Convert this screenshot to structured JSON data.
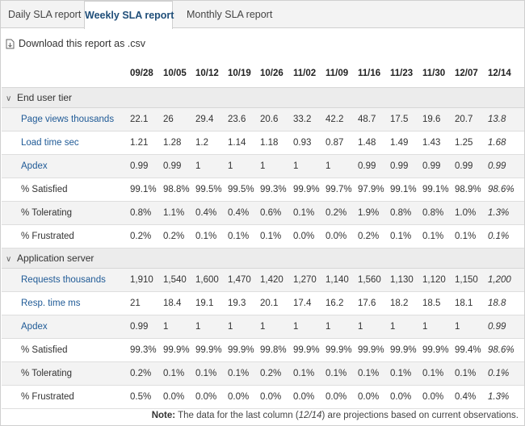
{
  "tabs": [
    {
      "label": "Daily SLA report"
    },
    {
      "label": "Weekly SLA report"
    },
    {
      "label": "Monthly SLA report"
    }
  ],
  "download": {
    "label": "Download this report as .csv"
  },
  "columns": [
    "09/28",
    "10/05",
    "10/12",
    "10/19",
    "10/26",
    "11/02",
    "11/09",
    "11/16",
    "11/23",
    "11/30",
    "12/07",
    "12/14"
  ],
  "sections": [
    {
      "title": "End user tier",
      "rows": [
        {
          "label": "Page views thousands",
          "link": true,
          "values": [
            "22.1",
            "26",
            "29.4",
            "23.6",
            "20.6",
            "33.2",
            "42.2",
            "48.7",
            "17.5",
            "19.6",
            "20.7",
            "13.8"
          ]
        },
        {
          "label": "Load time sec",
          "link": true,
          "values": [
            "1.21",
            "1.28",
            "1.2",
            "1.14",
            "1.18",
            "0.93",
            "0.87",
            "1.48",
            "1.49",
            "1.43",
            "1.25",
            "1.68"
          ]
        },
        {
          "label": "Apdex",
          "link": true,
          "values": [
            "0.99",
            "0.99",
            "1",
            "1",
            "1",
            "1",
            "1",
            "0.99",
            "0.99",
            "0.99",
            "0.99",
            "0.99"
          ]
        },
        {
          "label": "% Satisfied",
          "link": false,
          "values": [
            "99.1%",
            "98.8%",
            "99.5%",
            "99.5%",
            "99.3%",
            "99.9%",
            "99.7%",
            "97.9%",
            "99.1%",
            "99.1%",
            "98.9%",
            "98.6%"
          ]
        },
        {
          "label": "% Tolerating",
          "link": false,
          "values": [
            "0.8%",
            "1.1%",
            "0.4%",
            "0.4%",
            "0.6%",
            "0.1%",
            "0.2%",
            "1.9%",
            "0.8%",
            "0.8%",
            "1.0%",
            "1.3%"
          ]
        },
        {
          "label": "% Frustrated",
          "link": false,
          "values": [
            "0.2%",
            "0.2%",
            "0.1%",
            "0.1%",
            "0.1%",
            "0.0%",
            "0.0%",
            "0.2%",
            "0.1%",
            "0.1%",
            "0.1%",
            "0.1%"
          ]
        }
      ]
    },
    {
      "title": "Application server",
      "rows": [
        {
          "label": "Requests thousands",
          "link": true,
          "values": [
            "1,910",
            "1,540",
            "1,600",
            "1,470",
            "1,420",
            "1,270",
            "1,140",
            "1,560",
            "1,130",
            "1,120",
            "1,150",
            "1,200"
          ]
        },
        {
          "label": "Resp. time ms",
          "link": true,
          "values": [
            "21",
            "18.4",
            "19.1",
            "19.3",
            "20.1",
            "17.4",
            "16.2",
            "17.6",
            "18.2",
            "18.5",
            "18.1",
            "18.8"
          ]
        },
        {
          "label": "Apdex",
          "link": true,
          "values": [
            "0.99",
            "1",
            "1",
            "1",
            "1",
            "1",
            "1",
            "1",
            "1",
            "1",
            "1",
            "0.99"
          ]
        },
        {
          "label": "% Satisfied",
          "link": false,
          "values": [
            "99.3%",
            "99.9%",
            "99.9%",
            "99.9%",
            "99.8%",
            "99.9%",
            "99.9%",
            "99.9%",
            "99.9%",
            "99.9%",
            "99.4%",
            "98.6%"
          ]
        },
        {
          "label": "% Tolerating",
          "link": false,
          "values": [
            "0.2%",
            "0.1%",
            "0.1%",
            "0.1%",
            "0.2%",
            "0.1%",
            "0.1%",
            "0.1%",
            "0.1%",
            "0.1%",
            "0.1%",
            "0.1%"
          ]
        },
        {
          "label": "% Frustrated",
          "link": false,
          "values": [
            "0.5%",
            "0.0%",
            "0.0%",
            "0.0%",
            "0.0%",
            "0.0%",
            "0.0%",
            "0.0%",
            "0.0%",
            "0.0%",
            "0.4%",
            "1.3%"
          ]
        }
      ]
    }
  ],
  "note": {
    "prefix": "Note:",
    "text_before": " The data for the last column (",
    "column": "12/14",
    "text_after": ") are projections based on current observations."
  },
  "colors": {
    "link": "#1f5a96",
    "active_tab": "#1f4e79",
    "section_bg": "#ececec",
    "shade_bg": "#f3f3f3"
  }
}
